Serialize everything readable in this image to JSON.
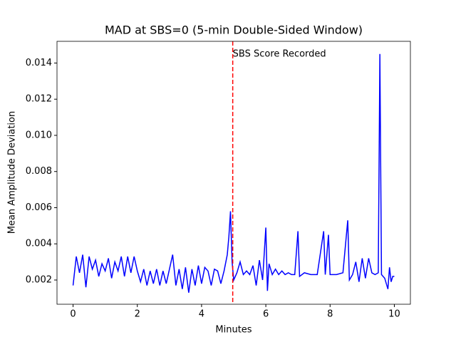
{
  "chart_data": {
    "type": "line",
    "title": "MAD at SBS=0 (5-min Double-Sided Window)",
    "x_label": "Minutes",
    "y_label": "Mean Amplitude Deviation",
    "xlim": [
      -0.5,
      10.5
    ],
    "ylim": [
      0.00066,
      0.0152
    ],
    "xticks": [
      0,
      2,
      4,
      6,
      8,
      10
    ],
    "yticks": [
      0.002,
      0.004,
      0.006,
      0.008,
      {
        "value": 0.01,
        "label": "0.010"
      },
      0.012,
      0.014
    ],
    "x": [
      0.0,
      0.1,
      0.2,
      0.3,
      0.4,
      0.5,
      0.6,
      0.7,
      0.8,
      0.9,
      1.0,
      1.1,
      1.2,
      1.3,
      1.4,
      1.5,
      1.6,
      1.7,
      1.8,
      1.9,
      2.0,
      2.1,
      2.2,
      2.3,
      2.4,
      2.5,
      2.6,
      2.7,
      2.8,
      2.9,
      3.0,
      3.1,
      3.2,
      3.3,
      3.4,
      3.5,
      3.6,
      3.7,
      3.8,
      3.9,
      4.0,
      4.1,
      4.2,
      4.3,
      4.4,
      4.5,
      4.6,
      4.7,
      4.8,
      4.85,
      4.9,
      4.95,
      5.0,
      5.1,
      5.2,
      5.3,
      5.4,
      5.5,
      5.6,
      5.7,
      5.8,
      5.9,
      6.0,
      6.05,
      6.1,
      6.2,
      6.3,
      6.4,
      6.5,
      6.6,
      6.7,
      6.8,
      6.9,
      7.0,
      7.05,
      7.2,
      7.4,
      7.6,
      7.8,
      7.85,
      7.95,
      8.0,
      8.2,
      8.4,
      8.55,
      8.6,
      8.7,
      8.8,
      8.9,
      9.0,
      9.1,
      9.2,
      9.3,
      9.4,
      9.5,
      9.55,
      9.6,
      9.7,
      9.8,
      9.85,
      9.9,
      9.95,
      10.0
    ],
    "series": [
      {
        "name": "MAD",
        "color": "#0000ff",
        "values": [
          0.0017,
          0.0033,
          0.0024,
          0.0034,
          0.0016,
          0.0033,
          0.0026,
          0.0031,
          0.0022,
          0.0029,
          0.0025,
          0.0032,
          0.0021,
          0.003,
          0.0025,
          0.0033,
          0.0022,
          0.0033,
          0.0024,
          0.0033,
          0.0025,
          0.0019,
          0.0026,
          0.0017,
          0.0025,
          0.0018,
          0.0026,
          0.0017,
          0.0025,
          0.0018,
          0.0026,
          0.0034,
          0.0017,
          0.0026,
          0.0015,
          0.0027,
          0.0013,
          0.0026,
          0.0017,
          0.0028,
          0.0018,
          0.0027,
          0.0025,
          0.0017,
          0.0026,
          0.0025,
          0.0018,
          0.0025,
          0.0034,
          0.0044,
          0.0058,
          0.003,
          0.002,
          0.0024,
          0.003,
          0.0023,
          0.0025,
          0.0023,
          0.0028,
          0.0017,
          0.0031,
          0.002,
          0.0049,
          0.0014,
          0.0029,
          0.0023,
          0.0026,
          0.0023,
          0.0025,
          0.0023,
          0.0024,
          0.0023,
          0.0023,
          0.0047,
          0.0022,
          0.0024,
          0.0023,
          0.0023,
          0.0047,
          0.0023,
          0.0045,
          0.0023,
          0.0023,
          0.0024,
          0.0053,
          0.002,
          0.0023,
          0.003,
          0.0019,
          0.0032,
          0.0021,
          0.0032,
          0.0024,
          0.0023,
          0.0024,
          0.0145,
          0.0023,
          0.0021,
          0.0015,
          0.0027,
          0.0019,
          0.0022,
          0.0022
        ]
      }
    ],
    "vline": {
      "x": 4.97,
      "color": "#ff0000"
    },
    "annotation": {
      "text": "SBS Score Recorded",
      "x": 4.97,
      "y": 0.0145
    }
  }
}
